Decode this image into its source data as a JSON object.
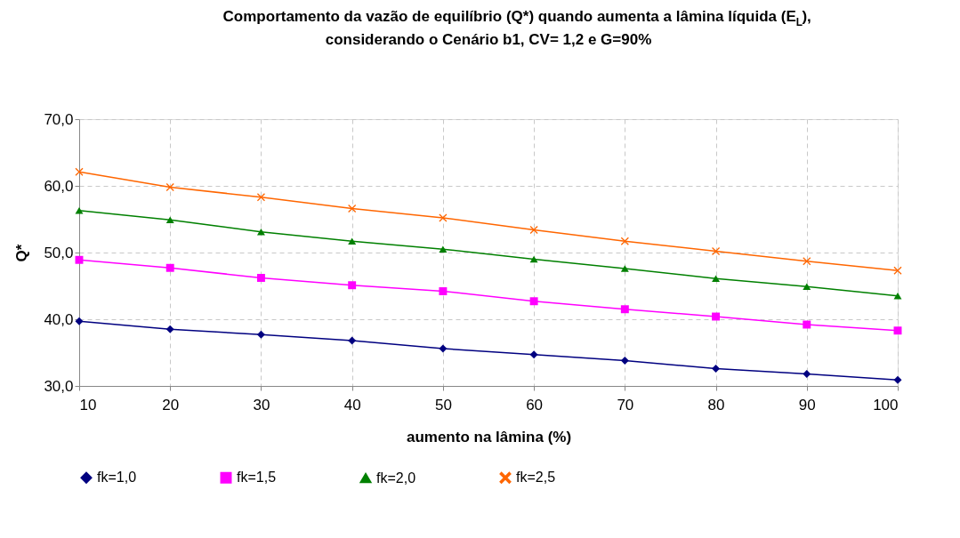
{
  "chart_data": {
    "type": "line",
    "title": "Comportamento da vazão de equilíbrio (Q*) quando aumenta a lâmina líquida (E$_{L}$),\nconsiderando o Cenário b1,  CV= 1,2 e G=90%",
    "xlabel": "aumento na lâmina (%)",
    "ylabel": "Q*",
    "x": [
      10,
      20,
      30,
      40,
      50,
      60,
      70,
      80,
      90,
      100
    ],
    "xlim": [
      10,
      100
    ],
    "xticks": [
      10,
      20,
      30,
      40,
      50,
      60,
      70,
      80,
      90,
      100
    ],
    "ylim": [
      30,
      70
    ],
    "yticks": [
      {
        "value": 30,
        "label": "30,0"
      },
      {
        "value": 40,
        "label": "40,0"
      },
      {
        "value": 50,
        "label": "50,0"
      },
      {
        "value": 60,
        "label": "60,0"
      },
      {
        "value": 70,
        "label": "70,0"
      }
    ],
    "grid": true,
    "legend": "bottom",
    "line_style": "solid",
    "series": [
      {
        "name": "fk=1,0",
        "color": "#000080",
        "marker": "diamond",
        "values": [
          39.7,
          38.5,
          37.7,
          36.8,
          35.6,
          34.7,
          33.8,
          32.6,
          31.8,
          30.9
        ]
      },
      {
        "name": "fk=1,5",
        "color": "#ff00ff",
        "marker": "square",
        "values": [
          48.9,
          47.7,
          46.2,
          45.1,
          44.2,
          42.7,
          41.5,
          40.4,
          39.2,
          38.3
        ]
      },
      {
        "name": "fk=2,0",
        "color": "#008000",
        "marker": "triangle",
        "values": [
          56.3,
          54.9,
          53.1,
          51.7,
          50.5,
          49.0,
          47.6,
          46.1,
          44.9,
          43.5
        ]
      },
      {
        "name": "fk=2,5",
        "color": "#ff6600",
        "marker": "cross",
        "values": [
          62.1,
          59.8,
          58.3,
          56.6,
          55.2,
          53.4,
          51.7,
          50.2,
          48.7,
          47.3
        ]
      }
    ]
  }
}
